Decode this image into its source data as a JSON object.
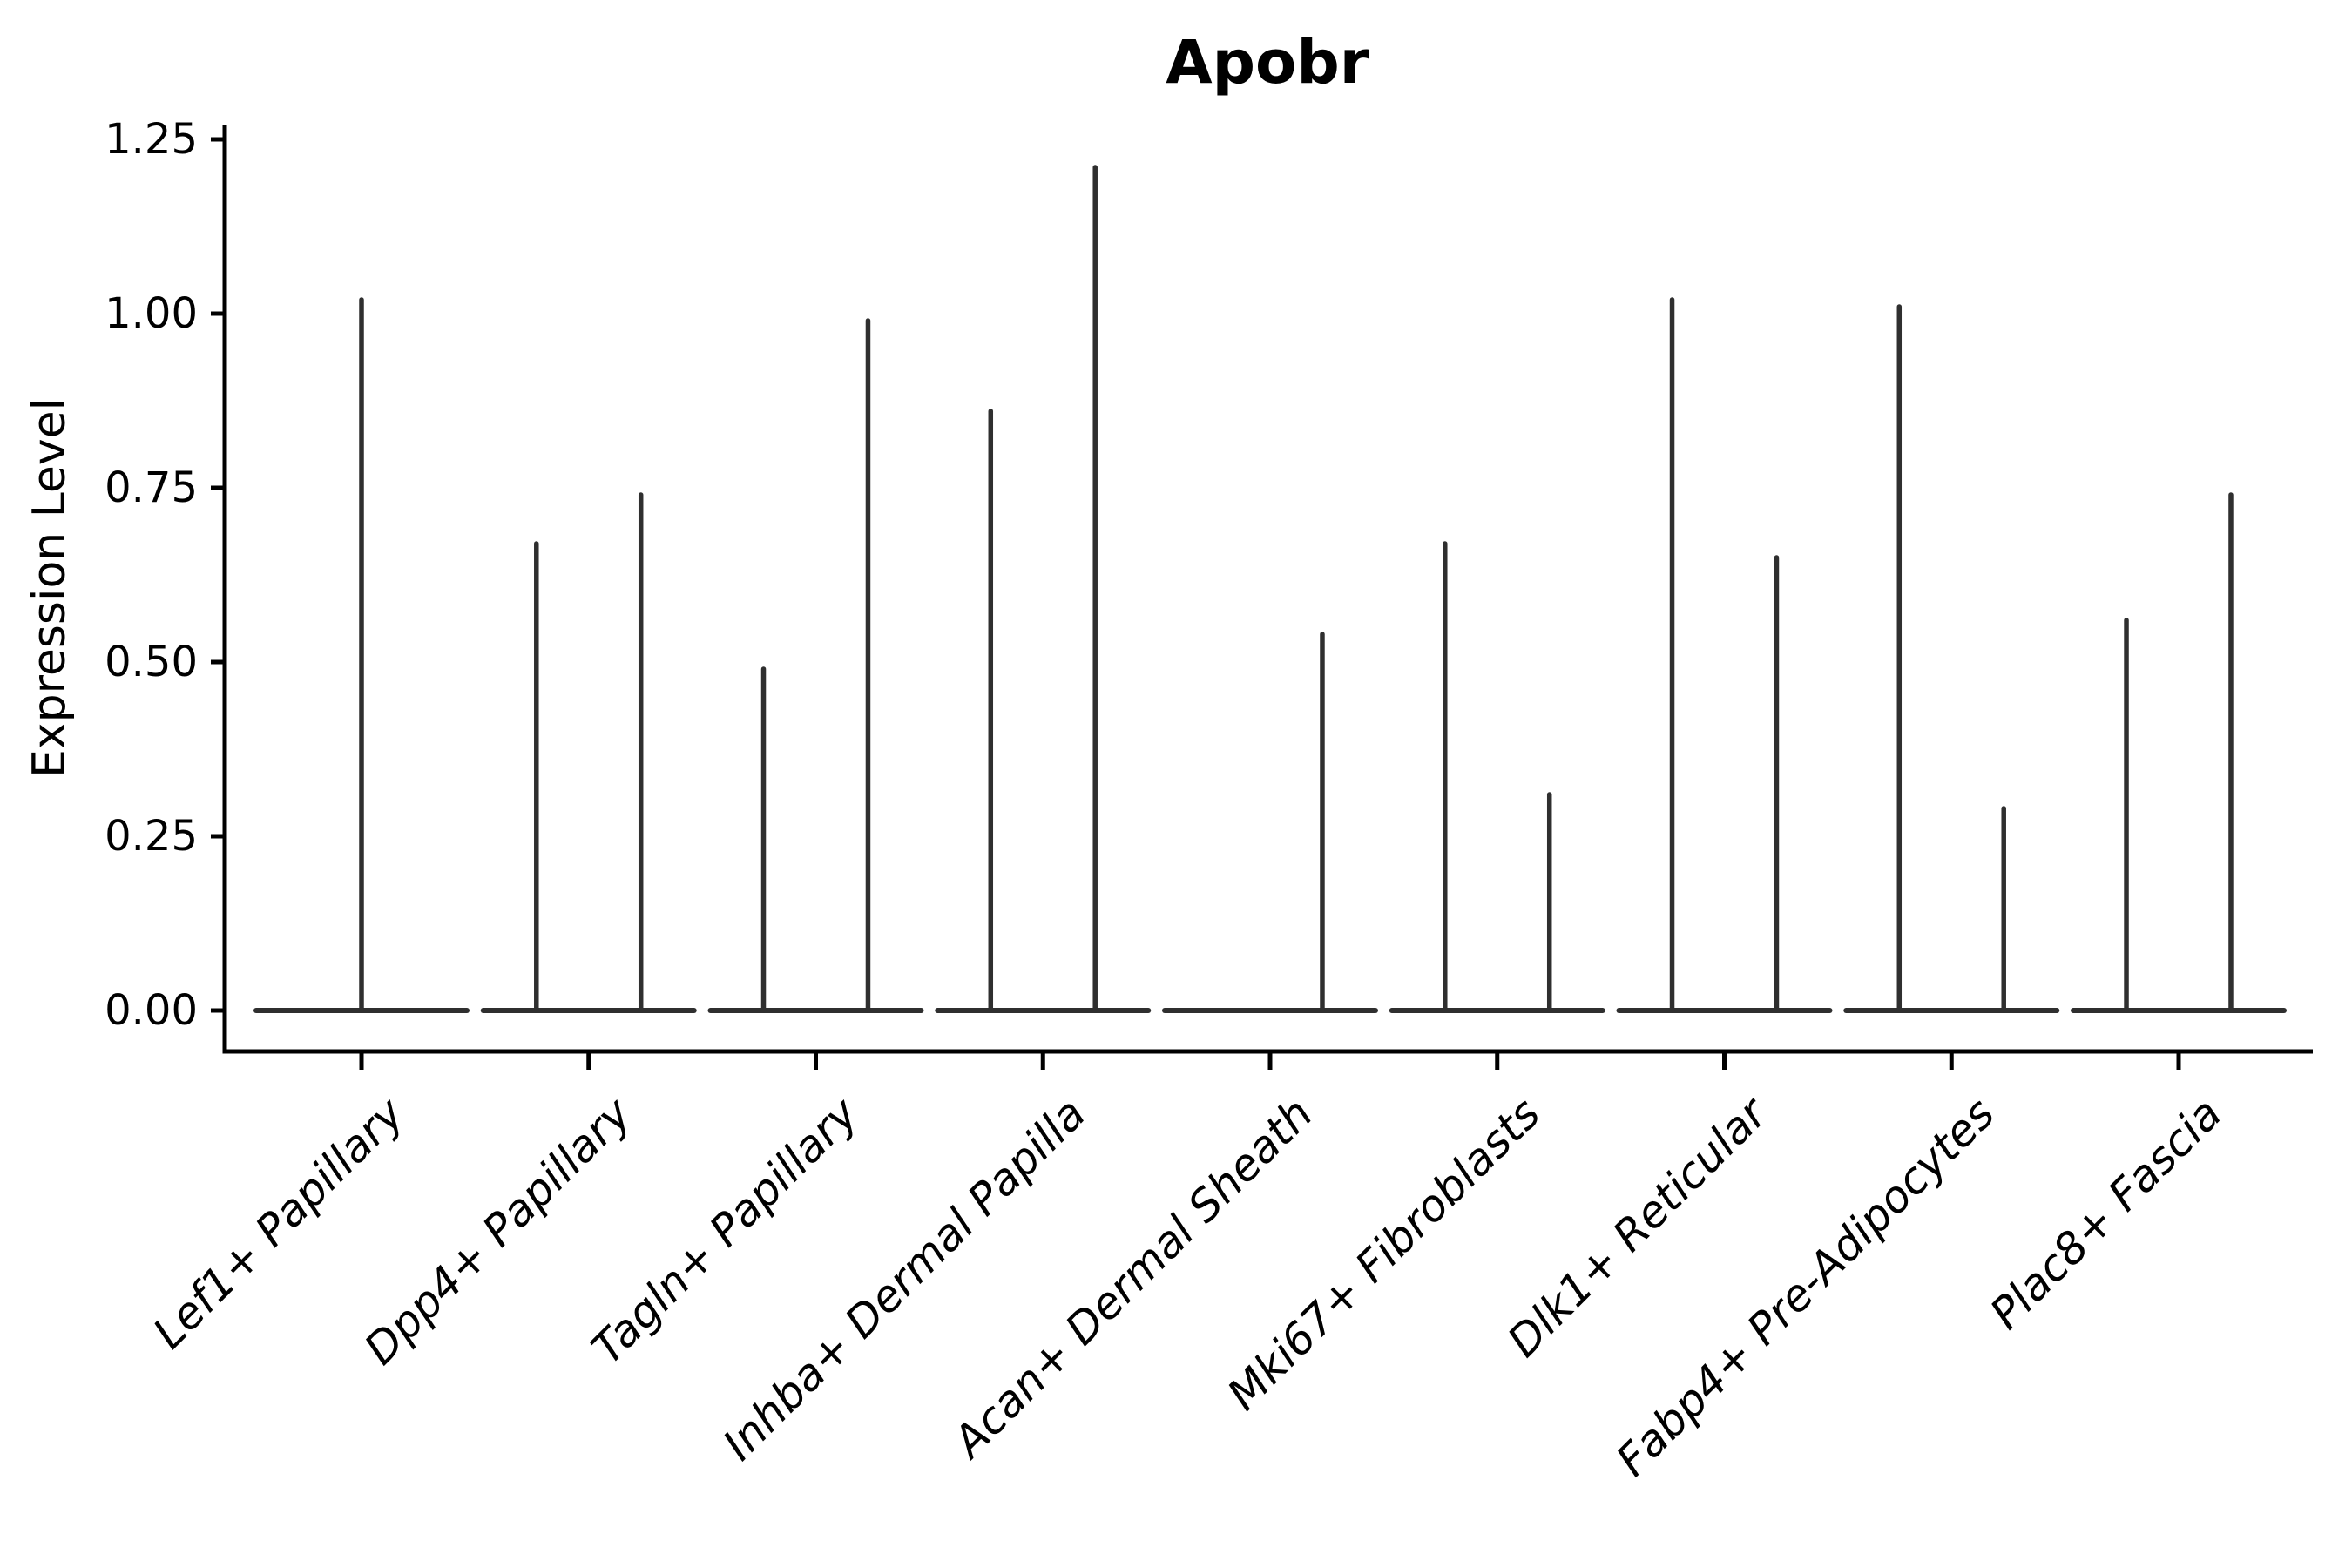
{
  "title": "Apobr",
  "y_axis": {
    "label": "Expression Level",
    "tick_labels": [
      "0.00",
      "0.25",
      "0.50",
      "0.75",
      "1.00",
      "1.25"
    ]
  },
  "chart_data": {
    "type": "violin",
    "title": "Apobr",
    "xlabel": "",
    "ylabel": "Expression Level",
    "ylim": [
      -0.06,
      1.27
    ],
    "grid": false,
    "legend": null,
    "y_ticks": [
      0,
      0.25,
      0.5,
      0.75,
      1.0,
      1.25
    ],
    "y_tick_labels": [
      "0.00",
      "0.25",
      "0.50",
      "0.75",
      "1.00",
      "1.25"
    ],
    "categories": [
      "Lef1+ Papillary",
      "Dpp4+ Papillary",
      "Tagln+ Papillary",
      "Inhba+ Dermal Papilla",
      "Acan+ Dermal Sheath",
      "Mki67+ Fibroblasts",
      "Dlk1+ Reticular",
      "Fabp4+ Pre-Adipocytes",
      "Plac8+ Fascia"
    ],
    "violins": [
      {
        "category": "Lef1+ Papillary",
        "baseline_value": 0,
        "spikes": [
          {
            "x_offset": 0.0,
            "value": 1.02
          }
        ]
      },
      {
        "category": "Dpp4+ Papillary",
        "baseline_value": 0,
        "spikes": [
          {
            "x_offset": -0.23,
            "value": 0.67
          },
          {
            "x_offset": 0.23,
            "value": 0.74
          }
        ]
      },
      {
        "category": "Tagln+ Papillary",
        "baseline_value": 0,
        "spikes": [
          {
            "x_offset": -0.23,
            "value": 0.49
          },
          {
            "x_offset": 0.23,
            "value": 0.99
          }
        ]
      },
      {
        "category": "Inhba+ Dermal Papilla",
        "baseline_value": 0,
        "spikes": [
          {
            "x_offset": -0.23,
            "value": 0.86
          },
          {
            "x_offset": 0.23,
            "value": 1.21
          }
        ]
      },
      {
        "category": "Acan+ Dermal Sheath",
        "baseline_value": 0,
        "spikes": [
          {
            "x_offset": 0.23,
            "value": 0.54
          }
        ]
      },
      {
        "category": "Mki67+ Fibroblasts",
        "baseline_value": 0,
        "spikes": [
          {
            "x_offset": -0.23,
            "value": 0.67
          },
          {
            "x_offset": 0.23,
            "value": 0.31
          }
        ]
      },
      {
        "category": "Dlk1+ Reticular",
        "baseline_value": 0,
        "spikes": [
          {
            "x_offset": -0.23,
            "value": 1.02
          },
          {
            "x_offset": 0.23,
            "value": 0.65
          }
        ]
      },
      {
        "category": "Fabp4+ Pre-Adipocytes",
        "baseline_value": 0,
        "spikes": [
          {
            "x_offset": -0.23,
            "value": 1.01
          },
          {
            "x_offset": 0.23,
            "value": 0.29
          }
        ]
      },
      {
        "category": "Plac8+ Fascia",
        "baseline_value": 0,
        "spikes": [
          {
            "x_offset": -0.23,
            "value": 0.56
          },
          {
            "x_offset": 0.23,
            "value": 0.74
          }
        ]
      }
    ],
    "colors": {
      "violin_line": "#2f2f2f",
      "axis": "#000000",
      "text": "#000000",
      "background": "#ffffff"
    }
  }
}
